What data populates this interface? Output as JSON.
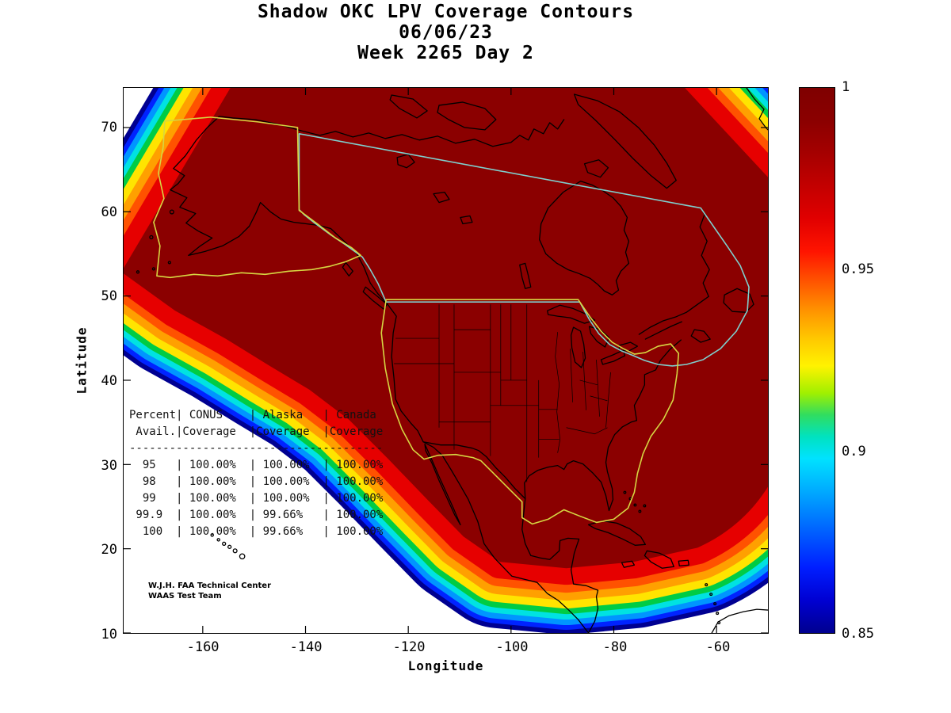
{
  "figure": {
    "title_lines": [
      "Shadow OKC LPV Coverage Contours",
      "06/06/23",
      "Week 2265 Day 2"
    ],
    "credit_lines": [
      "W.J.H. FAA Technical Center",
      "WAAS Test Team"
    ]
  },
  "axes": {
    "x": {
      "label": "Longitude",
      "tick_values": [
        -160,
        -140,
        -120,
        -100,
        -80,
        -60
      ],
      "tick_labels": [
        "-160",
        "-140",
        "-120",
        "-100",
        "-80",
        "-60"
      ],
      "range": [
        -175.4,
        -50.0
      ]
    },
    "y": {
      "label": "Latitude",
      "tick_values": [
        70,
        60,
        50,
        40,
        30,
        20,
        10
      ],
      "tick_labels": [
        "70",
        "60",
        "50",
        "40",
        "30",
        "20",
        "10"
      ],
      "range": [
        10,
        74.7
      ]
    }
  },
  "colorbar": {
    "min": 0.85,
    "max": 1.0,
    "colormap": "jet",
    "tick_values": [
      1,
      0.95,
      0.9,
      0.85
    ],
    "tick_labels": [
      "1",
      "0.95",
      "0.9",
      "0.85"
    ],
    "band_colors_inner_to_outer": [
      "#8b0000",
      "#e60000",
      "#ff5200",
      "#ffa000",
      "#ffe400",
      "#00cc44",
      "#00e2e2",
      "#0095ff",
      "#0023ff",
      "#000091"
    ]
  },
  "coverage_table": {
    "header_top": [
      "Percent",
      " CONUS",
      " Alaska",
      " Canada"
    ],
    "header_bottom": [
      " Avail.",
      "Coverage",
      "Coverage",
      "Coverage"
    ],
    "rows": [
      [
        "95",
        "100.00%",
        "100.00%",
        "100.00%"
      ],
      [
        "98",
        "100.00%",
        "100.00%",
        "100.00%"
      ],
      [
        "99",
        "100.00%",
        "100.00%",
        "100.00%"
      ],
      [
        "99.9",
        "100.00%",
        "99.66%",
        "100.00%"
      ],
      [
        "100",
        "100.00%",
        "99.66%",
        "100.00%"
      ]
    ]
  },
  "chart_data": {
    "type": "heatmap",
    "subtype": "filled-contour-availability-map",
    "title": "Shadow OKC LPV Coverage Contours",
    "date": "06/06/23",
    "week_day": "Week 2265 Day 2",
    "xlabel": "Longitude",
    "ylabel": "Latitude",
    "xlim": [
      -175.4,
      -50.0
    ],
    "ylim": [
      10,
      74.7
    ],
    "x_ticks": [
      -160,
      -140,
      -120,
      -100,
      -80,
      -60
    ],
    "y_ticks": [
      10,
      20,
      30,
      40,
      50,
      60,
      70
    ],
    "colorbar": {
      "min": 0.85,
      "max": 1.0,
      "ticks": [
        0.85,
        0.9,
        0.95,
        1
      ],
      "colormap": "jet",
      "meaning": "LPV availability (fraction)"
    },
    "regions": [
      "CONUS",
      "Alaska",
      "Canada"
    ],
    "categories": [
      "95",
      "98",
      "99",
      "99.9",
      "100"
    ],
    "series": [
      {
        "name": "CONUS Coverage",
        "values": [
          "100.00%",
          "100.00%",
          "100.00%",
          "100.00%",
          "100.00%"
        ]
      },
      {
        "name": "Alaska Coverage",
        "values": [
          "100.00%",
          "100.00%",
          "100.00%",
          "99.66%",
          "99.66%"
        ]
      },
      {
        "name": "Canada Coverage",
        "values": [
          "100.00%",
          "100.00%",
          "100.00%",
          "100.00%",
          "100.00%"
        ]
      }
    ],
    "notes": "Interior of map saturated at 1.0 (dark red); rainbow fringe bands down to 0.85 along NW, SW, S and NE edges of coverage region."
  }
}
